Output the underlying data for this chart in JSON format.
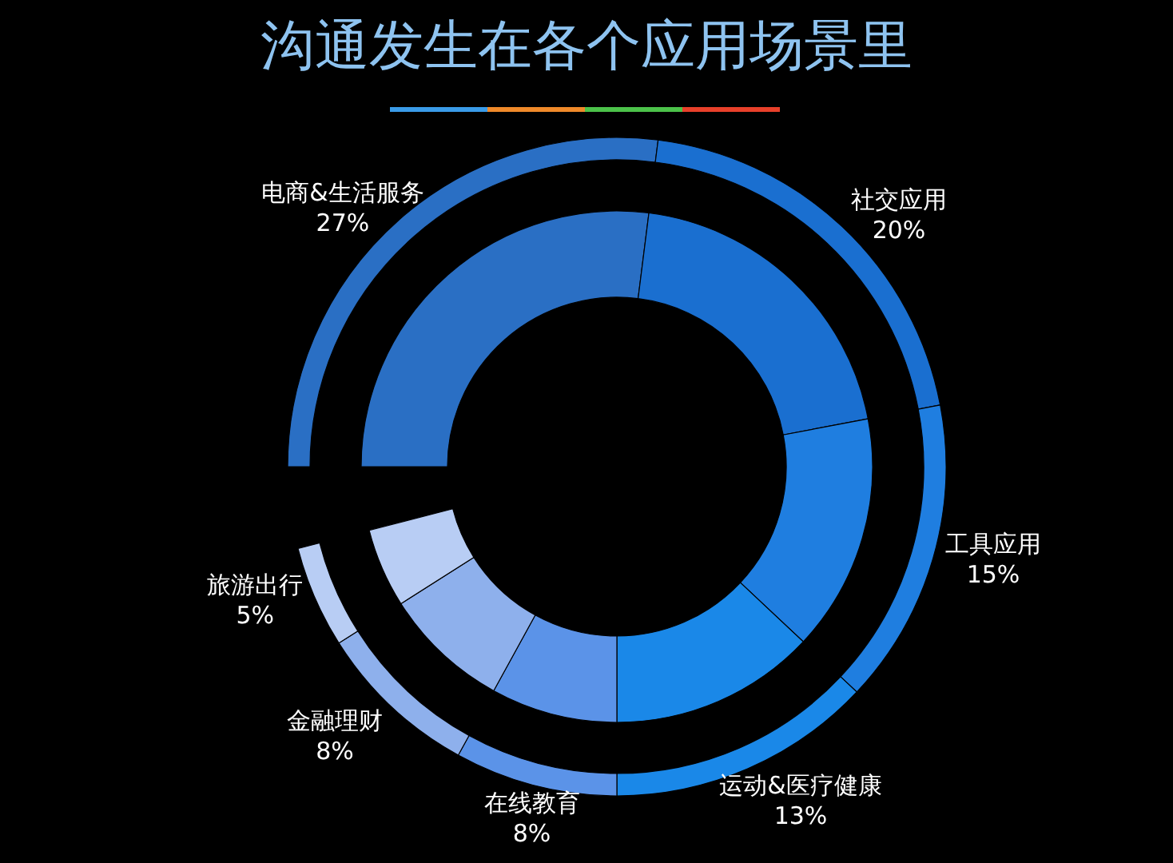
{
  "chart_data": {
    "type": "donut",
    "title": "沟通发生在各个应用场景里",
    "categories": [
      "电商&生活服务",
      "社交应用",
      "工具应用",
      "运动&医疗健康",
      "在线教育",
      "金融理财",
      "旅游出行"
    ],
    "values": [
      27,
      20,
      15,
      13,
      8,
      8,
      5
    ],
    "value_labels": [
      "27%",
      "20%",
      "15%",
      "13%",
      "8%",
      "8%",
      "5%"
    ],
    "colors": [
      "#2a6fc4",
      "#1a6fd0",
      "#1f7ee0",
      "#1a88e8",
      "#5b93e8",
      "#8eb0ec",
      "#b8cdf4"
    ]
  }
}
